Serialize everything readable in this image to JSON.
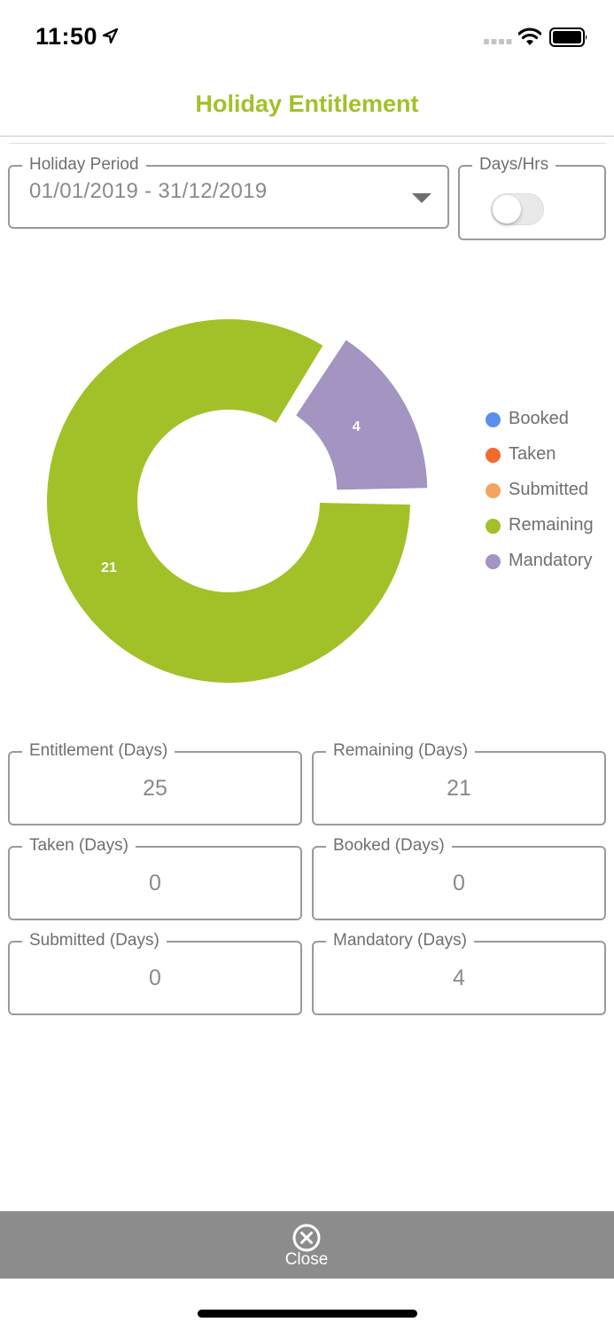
{
  "status_bar": {
    "time": "11:50"
  },
  "header": {
    "title": "Holiday Entitlement"
  },
  "filters": {
    "period_label": "Holiday Period",
    "period_value": "01/01/2019 - 31/12/2019",
    "unit_label": "Days/Hrs",
    "unit_toggle_on": false
  },
  "colors": {
    "accent": "#a2c128",
    "booked": "#5b8def",
    "taken": "#f26a2e",
    "submitted": "#f4a460",
    "remaining": "#a2c128",
    "mandatory": "#a394c2",
    "bottom_bar": "#8c8c8c"
  },
  "chart_data": {
    "type": "pie",
    "categories": [
      "Booked",
      "Taken",
      "Submitted",
      "Remaining",
      "Mandatory"
    ],
    "values": [
      0,
      0,
      0,
      21,
      4
    ],
    "legend_position": "right",
    "donut": true
  },
  "stats": [
    {
      "label": "Entitlement (Days)",
      "value": "25"
    },
    {
      "label": "Remaining (Days)",
      "value": "21"
    },
    {
      "label": "Taken (Days)",
      "value": "0"
    },
    {
      "label": "Booked (Days)",
      "value": "0"
    },
    {
      "label": "Submitted (Days)",
      "value": "0"
    },
    {
      "label": "Mandatory (Days)",
      "value": "4"
    }
  ],
  "footer": {
    "close_label": "Close",
    "close_icon": "close-circle-icon"
  }
}
